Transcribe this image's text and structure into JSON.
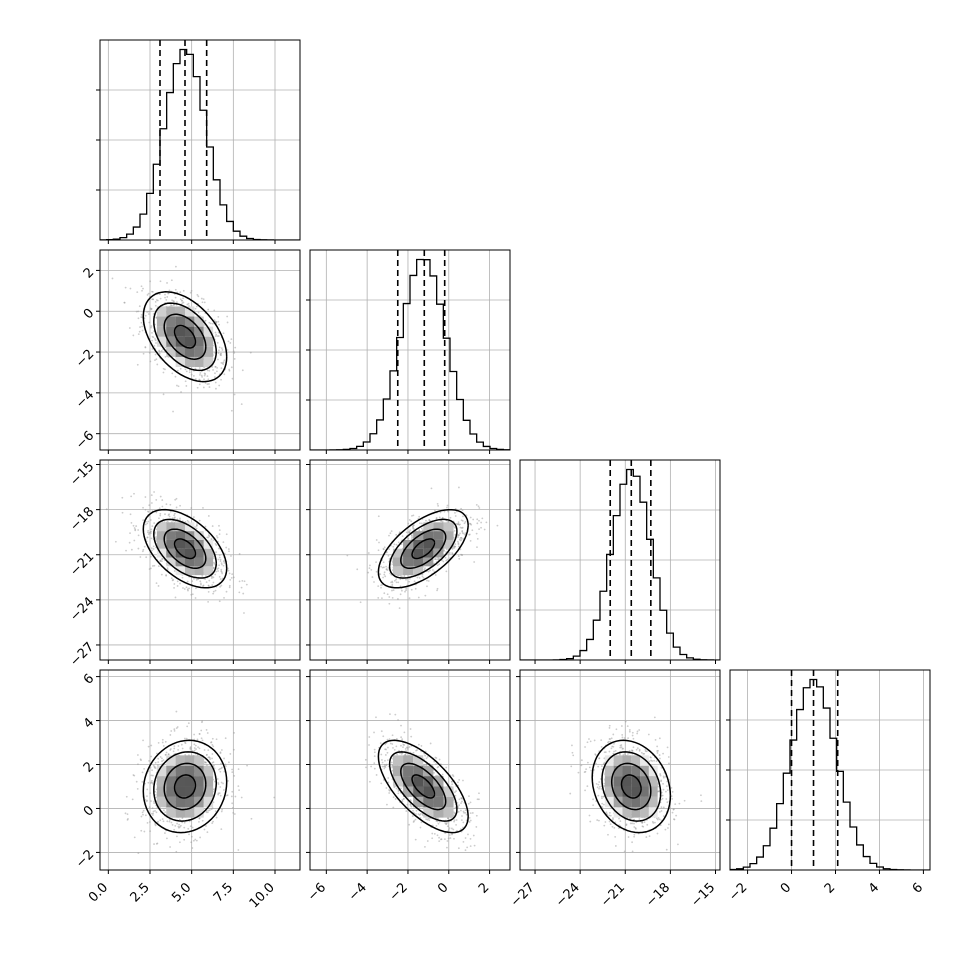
{
  "chart_data": {
    "type": "corner",
    "title": "",
    "grid": true,
    "variables": [
      {
        "range": [
          -0.5,
          11.5
        ],
        "ticks": [
          0.0,
          2.5,
          5.0,
          7.5,
          10.0
        ],
        "tick_labels": [
          "0.0",
          "2.5",
          "5.0",
          "7.5",
          "10.0"
        ],
        "quantiles": [
          3.1,
          4.6,
          5.9
        ],
        "mean": 4.6,
        "sd": 1.25
      },
      {
        "range": [
          -6.8,
          3.0
        ],
        "ticks": [
          -6,
          -4,
          -2,
          0,
          2
        ],
        "tick_labels": [
          "−6",
          "−4",
          "−2",
          "0",
          "2"
        ],
        "quantiles": [
          -2.5,
          -1.2,
          -0.2
        ],
        "mean": -1.25,
        "sd": 1.1
      },
      {
        "range": [
          -28.0,
          -14.7
        ],
        "ticks": [
          -27,
          -24,
          -21,
          -18,
          -15
        ],
        "tick_labels": [
          "−27",
          "−24",
          "−21",
          "−18",
          "−15"
        ],
        "quantiles": [
          -22.0,
          -20.6,
          -19.3
        ],
        "mean": -20.6,
        "sd": 1.3
      },
      {
        "range": [
          -2.8,
          6.3
        ],
        "ticks": [
          -2,
          0,
          2,
          4,
          6
        ],
        "tick_labels": [
          "−2",
          "0",
          "2",
          "4",
          "6"
        ],
        "quantiles": [
          0.0,
          1.0,
          2.1
        ],
        "mean": 1.0,
        "sd": 1.05
      }
    ],
    "correlations": [
      [
        1.0,
        -0.45,
        -0.5,
        0.1
      ],
      [
        -0.45,
        1.0,
        0.6,
        -0.65
      ],
      [
        -0.5,
        0.6,
        1.0,
        -0.2
      ],
      [
        0.1,
        -0.65,
        -0.2,
        1.0
      ]
    ],
    "contour_levels": [
      "0.5",
      "1.0",
      "1.5",
      "2.0"
    ]
  }
}
